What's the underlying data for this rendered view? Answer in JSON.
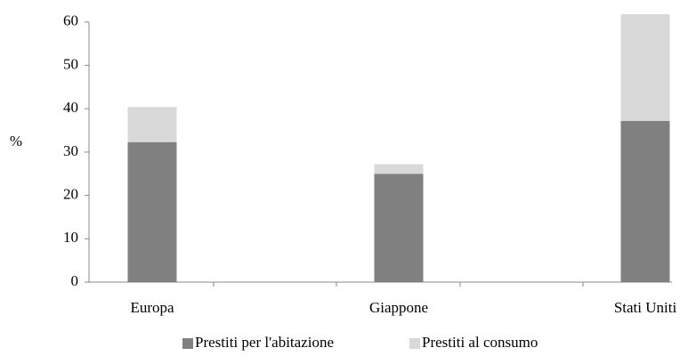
{
  "chart_data": {
    "type": "stacked_bar",
    "y_label": "%",
    "categories": [
      "Europa",
      "Giappone",
      "Stati Uniti"
    ],
    "series": [
      {
        "name": "Prestiti per l'abitazione",
        "color": "#808080",
        "values": [
          32.3,
          25.0,
          37.2
        ]
      },
      {
        "name": "Prestiti al consumo",
        "color": "#d9d9d9",
        "values": [
          8.1,
          2.2,
          24.6
        ]
      }
    ],
    "ylim": [
      0,
      62
    ],
    "yticks": [
      0,
      10,
      20,
      30,
      40,
      50,
      60
    ],
    "grid": false,
    "legend": "bottom"
  }
}
